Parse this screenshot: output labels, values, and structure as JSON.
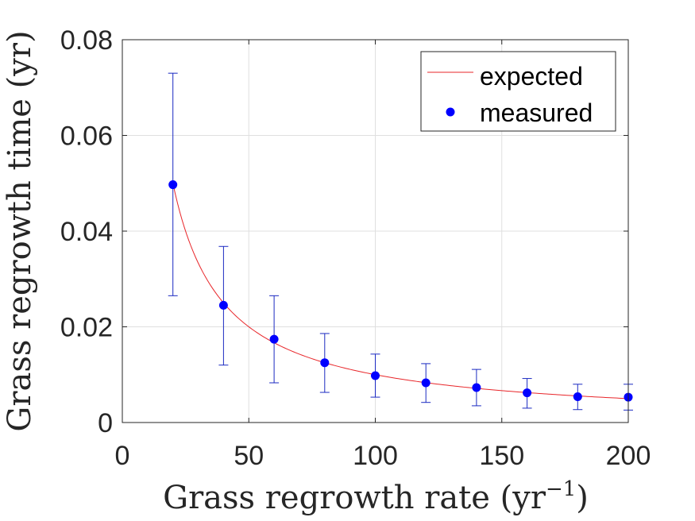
{
  "chart_data": {
    "type": "scatter",
    "xlabel": "Grass regrowth rate (yr",
    "xlabel_sup": "−1",
    "xlabel_end": ")",
    "ylabel": "Grass regrowth time (yr)",
    "xlim": [
      0,
      200
    ],
    "ylim": [
      0,
      0.08
    ],
    "xticks": [
      0,
      50,
      100,
      150,
      200
    ],
    "xtick_labels": [
      "0",
      "50",
      "100",
      "150",
      "200"
    ],
    "yticks": [
      0,
      0.02,
      0.04,
      0.06,
      0.08
    ],
    "ytick_labels": [
      "0",
      "0.02",
      "0.04",
      "0.06",
      "0.08"
    ],
    "grid": true,
    "legend_position": "top-right",
    "series": [
      {
        "name": "expected",
        "kind": "line",
        "color": "#e8262a",
        "function": "1/x",
        "x_range": [
          20,
          200
        ]
      },
      {
        "name": "measured",
        "kind": "errorbar-points",
        "color": "#0000ff",
        "errorbar_color": "#1b2ac2",
        "x": [
          20,
          40,
          60,
          80,
          100,
          120,
          140,
          160,
          180,
          200
        ],
        "y": [
          0.0497,
          0.0245,
          0.0174,
          0.0125,
          0.0098,
          0.0083,
          0.0073,
          0.0062,
          0.0054,
          0.0053
        ],
        "y_low": [
          0.0265,
          0.012,
          0.0083,
          0.0063,
          0.0053,
          0.0042,
          0.0035,
          0.003,
          0.0027,
          0.0026
        ],
        "y_high": [
          0.073,
          0.0368,
          0.0265,
          0.0186,
          0.0143,
          0.0123,
          0.0111,
          0.0092,
          0.008,
          0.008
        ]
      }
    ]
  }
}
